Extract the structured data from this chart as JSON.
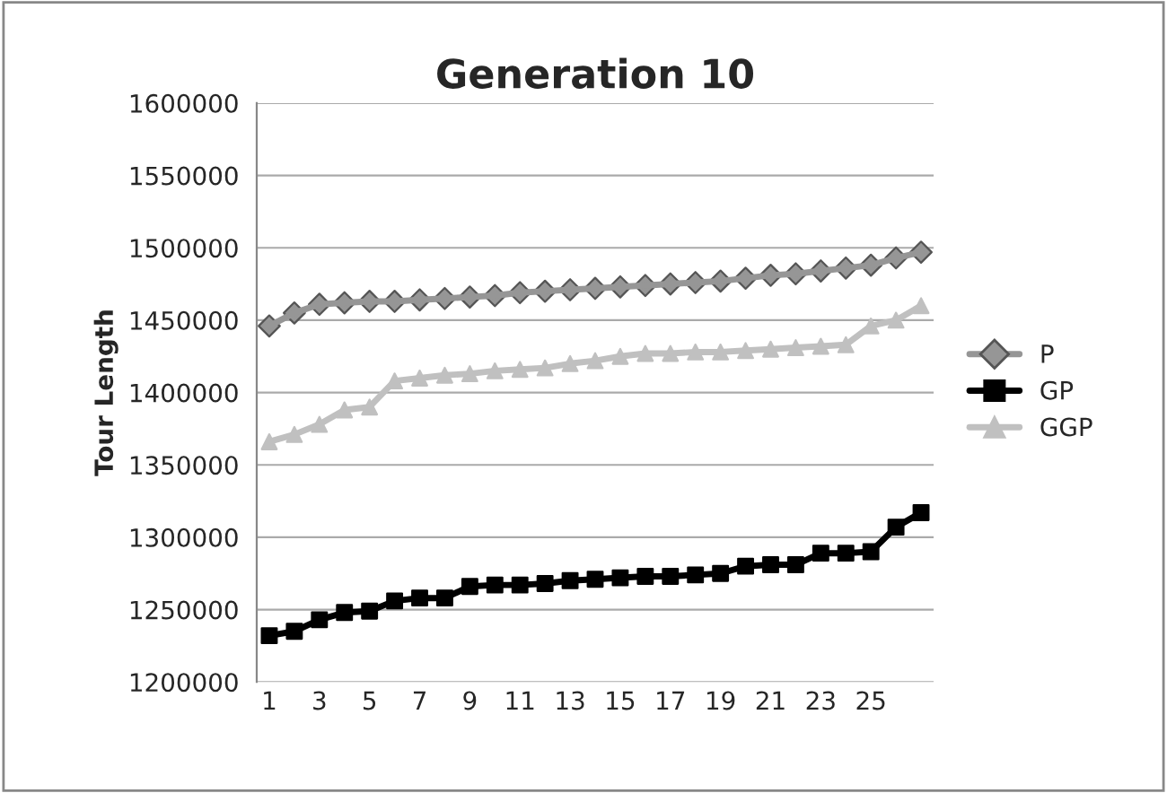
{
  "chart_data": {
    "type": "line",
    "title": "Generation 10",
    "ylabel": "Tour Length",
    "categories": [
      "1",
      null,
      "3",
      null,
      "5",
      null,
      "7",
      null,
      "9",
      null,
      "11",
      null,
      "13",
      null,
      "15",
      null,
      "17",
      null,
      "19",
      null,
      "21",
      null,
      "23",
      null,
      "25",
      null,
      null
    ],
    "series": [
      {
        "name": "P",
        "color": "#969696",
        "marker": "diamond",
        "values": [
          1446000,
          1455000,
          1461000,
          1462000,
          1463000,
          1463000,
          1464000,
          1465000,
          1466000,
          1467000,
          1469000,
          1470000,
          1471000,
          1472000,
          1473000,
          1474000,
          1475000,
          1476000,
          1477000,
          1479000,
          1481000,
          1482000,
          1484000,
          1486000,
          1488000,
          1493000,
          1497000
        ]
      },
      {
        "name": "GP",
        "color": "#000000",
        "marker": "square",
        "values": [
          1232000,
          1235000,
          1243000,
          1248000,
          1249000,
          1256000,
          1258000,
          1258000,
          1266000,
          1267000,
          1267000,
          1268000,
          1270000,
          1271000,
          1272000,
          1273000,
          1273000,
          1274000,
          1275000,
          1280000,
          1281000,
          1281000,
          1289000,
          1289000,
          1290000,
          1307000,
          1317000
        ]
      },
      {
        "name": "GGP",
        "color": "#c0c0c0",
        "marker": "triangle",
        "values": [
          1366000,
          1371000,
          1378000,
          1388000,
          1390000,
          1408000,
          1410000,
          1412000,
          1413000,
          1415000,
          1416000,
          1417000,
          1420000,
          1422000,
          1425000,
          1427000,
          1427000,
          1428000,
          1428000,
          1429000,
          1430000,
          1431000,
          1432000,
          1433000,
          1446000,
          1450000,
          1460000
        ]
      }
    ],
    "ylim": [
      1200000,
      1600000
    ],
    "yticks": [
      1200000,
      1250000,
      1300000,
      1350000,
      1400000,
      1450000,
      1500000,
      1550000,
      1600000
    ],
    "grid": "y",
    "legend": "right"
  }
}
